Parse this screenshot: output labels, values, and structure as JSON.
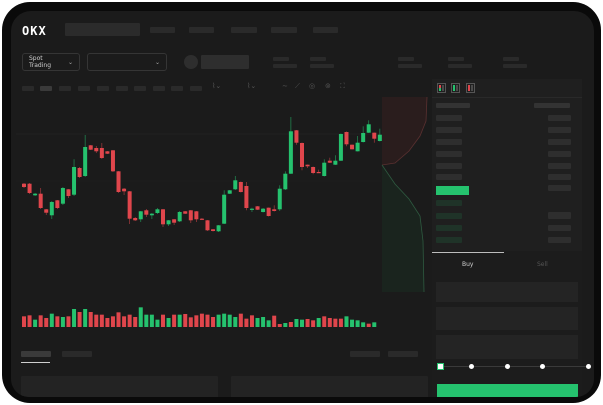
{
  "header": {
    "logo": "OKX"
  },
  "toolbar": {
    "market_dropdown": "Spot Trading",
    "chevron": "⌄"
  },
  "order_form": {
    "buy_tab": "Buy",
    "sell_tab": "Sell",
    "slider_value": 0
  },
  "colors": {
    "up": "#25c26e",
    "down": "#e0464c",
    "background": "#1b1b1b",
    "panel": "#1f1f1f"
  },
  "candles": [
    [
      68.3,
      65,
      69,
      64
    ],
    [
      68.3,
      59,
      69,
      58
    ],
    [
      56.7,
      58.3,
      59,
      56
    ],
    [
      58.3,
      44,
      64,
      43
    ],
    [
      42.7,
      39.3,
      43,
      37
    ],
    [
      36.7,
      50,
      51,
      33
    ],
    [
      51.7,
      44,
      52,
      43
    ],
    [
      48.3,
      64,
      65,
      47
    ],
    [
      62.7,
      56,
      63,
      54
    ],
    [
      57.3,
      85,
      92.7,
      56
    ],
    [
      84,
      75,
      85,
      74
    ],
    [
      76,
      105,
      117,
      75
    ],
    [
      106.7,
      102.3,
      107,
      102
    ],
    [
      104,
      100.7,
      106,
      99
    ],
    [
      104,
      94,
      109,
      93
    ],
    [
      100.7,
      98.3,
      101,
      98
    ],
    [
      101.7,
      80.7,
      102,
      80
    ],
    [
      80.7,
      60,
      81,
      59
    ],
    [
      63.3,
      60.7,
      64,
      57
    ],
    [
      60.7,
      33.3,
      61,
      28
    ],
    [
      34,
      31.7,
      35,
      31
    ],
    [
      32.7,
      40.7,
      41,
      30
    ],
    [
      41.7,
      37.3,
      43,
      35
    ],
    [
      36.7,
      38.3,
      39,
      33
    ],
    [
      39,
      42.7,
      44,
      38
    ],
    [
      42.7,
      27.7,
      43,
      25
    ],
    [
      27.7,
      31.7,
      32,
      26
    ],
    [
      32.7,
      29.3,
      33,
      27
    ],
    [
      30.7,
      40,
      41,
      30
    ],
    [
      40.7,
      38.3,
      41,
      38
    ],
    [
      41.7,
      31.7,
      42,
      29
    ],
    [
      40.7,
      32.7,
      41,
      30
    ],
    [
      33.3,
      32.3,
      34,
      32
    ],
    [
      31.7,
      21.7,
      32,
      21
    ],
    [
      22.7,
      21,
      23,
      20.5
    ],
    [
      20.7,
      26.7,
      27,
      20
    ],
    [
      28.3,
      57.3,
      61.7,
      28
    ],
    [
      58.3,
      61.7,
      62,
      58
    ],
    [
      62.7,
      71.7,
      76,
      62
    ],
    [
      70,
      60,
      70.5,
      59.5
    ],
    [
      66,
      44,
      70,
      41.7
    ],
    [
      42.3,
      43.3,
      44.3,
      40
    ],
    [
      45.7,
      42.3,
      46,
      42
    ],
    [
      40,
      43.3,
      44,
      39.5
    ],
    [
      44.3,
      36,
      44.5,
      35.5
    ],
    [
      42.7,
      41,
      46.7,
      40.5
    ],
    [
      42.7,
      63.3,
      66.7,
      41
    ],
    [
      62.7,
      78.3,
      80.7,
      62
    ],
    [
      78.3,
      120.7,
      135,
      78
    ],
    [
      121.7,
      109.3,
      122,
      107.3
    ],
    [
      109,
      85,
      109.5,
      81.7
    ],
    [
      87.3,
      85.7,
      87.5,
      84
    ],
    [
      85,
      79,
      85.5,
      77.7
    ],
    [
      80,
      79.3,
      82.3,
      79
    ],
    [
      76,
      89.3,
      92.7,
      75.5
    ],
    [
      91.3,
      89.3,
      94.3,
      89
    ],
    [
      87.3,
      91.3,
      96.7,
      87
    ],
    [
      91.3,
      118,
      118.5,
      91
    ],
    [
      120,
      107.7,
      120.5,
      105.7
    ],
    [
      107.3,
      102.7,
      107.5,
      102.5
    ],
    [
      100.7,
      109.3,
      116,
      100.5
    ],
    [
      110,
      119,
      125.7,
      109.5
    ],
    [
      119.3,
      127.7,
      131.7,
      119
    ],
    [
      119.3,
      113.3,
      119.5,
      109.3
    ],
    [
      111,
      117.3,
      123.3,
      110.5
    ]
  ],
  "volume": [
    [
      32,
      0
    ],
    [
      35,
      0
    ],
    [
      22,
      1
    ],
    [
      35,
      0
    ],
    [
      27,
      0
    ],
    [
      40,
      1
    ],
    [
      32,
      0
    ],
    [
      30,
      1
    ],
    [
      32,
      0
    ],
    [
      54,
      1
    ],
    [
      45,
      0
    ],
    [
      54,
      1
    ],
    [
      45,
      0
    ],
    [
      37,
      0
    ],
    [
      37,
      0
    ],
    [
      27,
      0
    ],
    [
      32,
      0
    ],
    [
      44,
      0
    ],
    [
      32,
      0
    ],
    [
      37,
      0
    ],
    [
      30,
      0
    ],
    [
      59,
      1
    ],
    [
      37,
      1
    ],
    [
      37,
      1
    ],
    [
      22,
      1
    ],
    [
      37,
      0
    ],
    [
      27,
      1
    ],
    [
      37,
      0
    ],
    [
      37,
      1
    ],
    [
      39,
      0
    ],
    [
      29,
      0
    ],
    [
      35,
      0
    ],
    [
      40,
      0
    ],
    [
      37,
      0
    ],
    [
      30,
      0
    ],
    [
      37,
      1
    ],
    [
      40,
      1
    ],
    [
      37,
      1
    ],
    [
      30,
      1
    ],
    [
      40,
      0
    ],
    [
      25,
      0
    ],
    [
      35,
      0
    ],
    [
      27,
      1
    ],
    [
      30,
      1
    ],
    [
      20,
      1
    ],
    [
      34,
      0
    ],
    [
      9,
      0
    ],
    [
      12,
      1
    ],
    [
      15,
      0
    ],
    [
      24,
      1
    ],
    [
      22,
      1
    ],
    [
      24,
      0
    ],
    [
      20,
      0
    ],
    [
      27,
      1
    ],
    [
      32,
      0
    ],
    [
      27,
      0
    ],
    [
      25,
      0
    ],
    [
      25,
      0
    ],
    [
      32,
      1
    ],
    [
      22,
      1
    ],
    [
      20,
      1
    ],
    [
      14,
      1
    ],
    [
      10,
      0
    ],
    [
      14,
      1
    ]
  ]
}
